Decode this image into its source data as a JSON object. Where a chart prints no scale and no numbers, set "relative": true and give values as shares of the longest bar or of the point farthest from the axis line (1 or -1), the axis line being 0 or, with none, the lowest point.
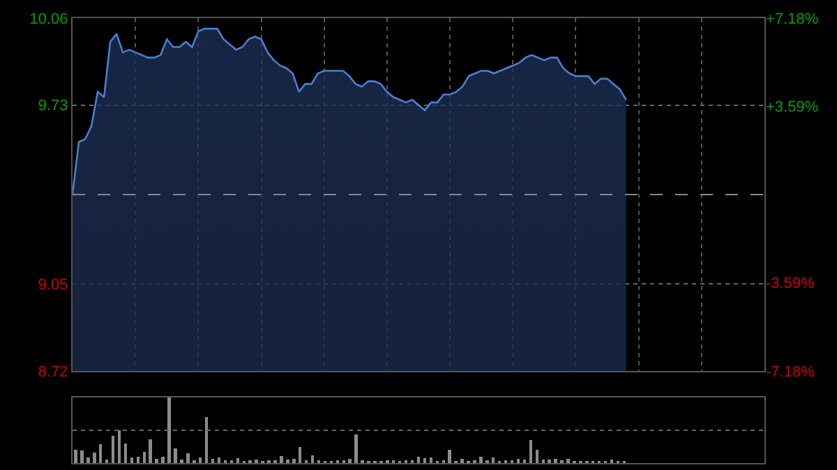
{
  "chart_data": [
    {
      "type": "area",
      "categories": [
        null,
        null,
        null,
        null,
        null,
        null,
        null,
        null,
        null,
        null,
        null,
        null,
        null,
        null,
        null,
        null,
        null,
        null,
        null,
        null,
        null,
        null,
        null,
        null,
        null,
        null,
        null,
        null,
        null,
        null,
        null,
        null,
        null,
        null,
        null,
        null,
        null,
        null,
        null,
        null,
        null,
        null,
        null,
        null,
        null,
        null,
        null,
        null,
        null,
        null,
        null,
        null,
        null,
        null,
        null,
        null,
        null,
        null,
        null,
        null,
        null,
        null,
        null,
        null,
        null,
        null,
        null,
        null,
        null,
        null,
        null,
        null,
        null,
        null,
        null,
        null,
        null,
        null,
        null,
        null,
        null,
        null,
        null,
        null,
        null,
        null,
        null,
        null,
        null,
        null,
        null,
        null,
        null,
        null,
        null,
        null,
        null,
        null,
        null,
        null,
        null,
        null,
        null,
        null,
        null,
        null,
        null,
        null,
        null,
        null,
        null
      ],
      "series": [
        {
          "color": "#4a7fd0",
          "values": [
            9.39,
            9.59,
            9.6,
            9.65,
            9.78,
            9.76,
            9.97,
            10.0,
            9.93,
            9.94,
            9.93,
            9.92,
            9.91,
            9.91,
            9.92,
            9.98,
            9.95,
            9.95,
            9.97,
            9.95,
            10.01,
            10.02,
            10.02,
            10.02,
            9.98,
            9.96,
            9.94,
            9.95,
            9.98,
            9.99,
            9.98,
            9.93,
            9.9,
            9.88,
            9.87,
            9.85,
            9.78,
            9.81,
            9.81,
            9.85,
            9.86,
            9.86,
            9.86,
            9.86,
            9.84,
            9.81,
            9.8,
            9.82,
            9.82,
            9.81,
            9.78,
            9.76,
            9.75,
            9.74,
            9.75,
            9.73,
            9.71,
            9.74,
            9.74,
            9.77,
            9.77,
            9.78,
            9.8,
            9.84,
            9.85,
            9.86,
            9.86,
            9.85,
            9.86,
            9.87,
            9.88,
            9.89,
            9.91,
            9.92,
            9.91,
            9.9,
            9.91,
            9.91,
            9.87,
            9.85,
            9.84,
            9.84,
            9.84,
            9.81,
            9.83,
            9.83,
            9.81,
            9.79,
            9.75,
            null,
            null,
            null,
            null,
            null,
            null,
            null,
            null,
            null,
            null,
            null,
            null,
            null,
            null,
            null,
            null,
            null,
            null,
            null,
            null,
            null,
            null
          ]
        }
      ],
      "ylim": [
        8.72,
        10.06
      ],
      "yticks": [
        8.72,
        9.05,
        9.73,
        10.06
      ],
      "y2lim": [
        -7.18,
        7.18
      ],
      "y2ticks": [
        {
          "value": -7.18,
          "label": "-7.18%"
        },
        {
          "value": -3.59,
          "label": "-3.59%"
        },
        {
          "value": 3.59,
          "label": "+3.59%"
        },
        {
          "value": 7.18,
          "label": "+7.18%"
        }
      ],
      "ref_lines": [
        {
          "axis": "y",
          "value": 9.39,
          "color": "#888888",
          "line_style": "dashed"
        }
      ],
      "grid": true,
      "tick_labels": "y"
    },
    {
      "type": "bar",
      "relative": true,
      "categories": [
        null,
        null,
        null,
        null,
        null,
        null,
        null,
        null,
        null,
        null,
        null,
        null,
        null,
        null,
        null,
        null,
        null,
        null,
        null,
        null,
        null,
        null,
        null,
        null,
        null,
        null,
        null,
        null,
        null,
        null,
        null,
        null,
        null,
        null,
        null,
        null,
        null,
        null,
        null,
        null,
        null,
        null,
        null,
        null,
        null,
        null,
        null,
        null,
        null,
        null,
        null,
        null,
        null,
        null,
        null,
        null,
        null,
        null,
        null,
        null,
        null,
        null,
        null,
        null,
        null,
        null,
        null,
        null,
        null,
        null,
        null,
        null,
        null,
        null,
        null,
        null,
        null,
        null,
        null,
        null,
        null,
        null,
        null,
        null,
        null,
        null,
        null,
        null,
        null,
        null,
        null,
        null,
        null,
        null,
        null,
        null,
        null,
        null,
        null,
        null,
        null,
        null,
        null,
        null,
        null,
        null,
        null,
        null,
        null,
        null,
        null
      ],
      "series": [
        {
          "color": "#8c8c8c",
          "values": [
            0.2,
            0.19,
            0.08,
            0.16,
            0.29,
            0.05,
            0.41,
            0.5,
            0.3,
            0.08,
            0.1,
            0.17,
            0.36,
            0.06,
            0.1,
            1,
            0.22,
            0.05,
            0.15,
            0.04,
            0.08,
            0.7,
            0.06,
            0.08,
            0.04,
            0.04,
            0.07,
            0.03,
            0.04,
            0.05,
            0.03,
            0.04,
            0.04,
            0.11,
            0.05,
            0.06,
            0.24,
            0.04,
            0.12,
            0.04,
            0.03,
            0.03,
            0.04,
            0.04,
            0.06,
            0.44,
            0.04,
            0.03,
            0.03,
            0.03,
            0.04,
            0.04,
            0.03,
            0.04,
            0.04,
            0.1,
            0.07,
            0.08,
            0.03,
            0.04,
            0.2,
            0.03,
            0.06,
            0.03,
            0.04,
            0.1,
            0.04,
            0.08,
            0.03,
            0.04,
            0.04,
            0.06,
            0.05,
            0.35,
            0.2,
            0.05,
            0.05,
            0.06,
            0.04,
            0.06,
            0.03,
            0.03,
            0.03,
            0.03,
            0.03,
            0.03,
            0.05,
            0.03,
            0.03,
            null,
            null,
            null,
            null,
            null,
            null,
            null,
            null,
            null,
            null,
            null,
            null,
            null,
            null,
            null,
            null,
            null,
            null,
            null,
            null,
            null,
            null
          ]
        }
      ],
      "ref_lines": [
        {
          "axis": "y",
          "value": 0.5,
          "color": "#666666",
          "line_style": "dotted"
        }
      ],
      "tick_labels": false
    }
  ]
}
